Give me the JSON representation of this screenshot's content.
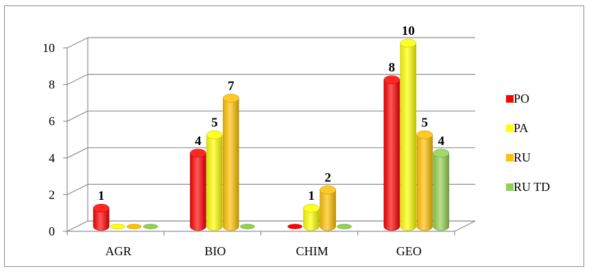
{
  "chart_data": {
    "type": "bar",
    "categories": [
      "AGR",
      "BIO",
      "CHIM",
      "GEO"
    ],
    "series": [
      {
        "name": "PO",
        "values": [
          1,
          4,
          0,
          8
        ],
        "color": "#FF0000"
      },
      {
        "name": "PA",
        "values": [
          0,
          5,
          1,
          10
        ],
        "color": "#FFFF00"
      },
      {
        "name": "RU",
        "values": [
          0,
          7,
          2,
          5
        ],
        "color": "#FFC000"
      },
      {
        "name": "RU TD",
        "values": [
          0,
          0,
          0,
          4
        ],
        "color": "#92D050"
      }
    ],
    "ylim": [
      0,
      10
    ],
    "yticks": [
      "0",
      "2",
      "4",
      "6",
      "8",
      "10"
    ],
    "grid": true,
    "legend_position": "right",
    "three_d": true
  }
}
